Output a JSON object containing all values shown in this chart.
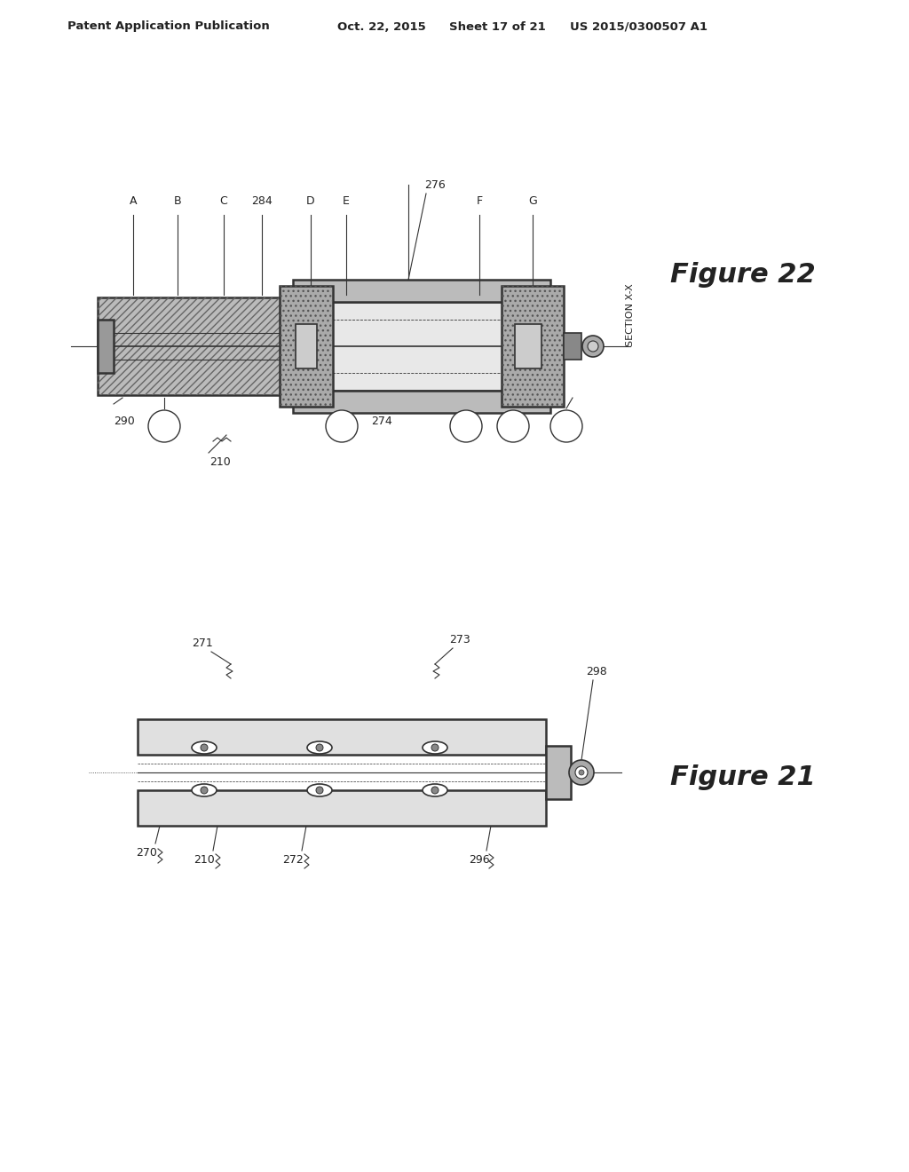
{
  "bg_color": "#ffffff",
  "header_text": "Patent Application Publication",
  "header_date": "Oct. 22, 2015",
  "header_sheet": "Sheet 17 of 21",
  "header_patent": "US 2015/0300507 A1",
  "fig22_title": "Figure 22",
  "fig21_title": "Figure 21",
  "section_label": "SECTION X-X",
  "line_color": "#333333",
  "hatch_color": "#555555",
  "gray_fill": "#aaaaaa",
  "light_gray": "#cccccc",
  "medium_gray": "#888888"
}
